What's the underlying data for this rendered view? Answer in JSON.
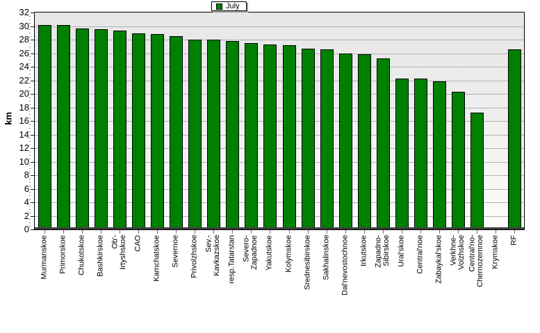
{
  "chart_data": {
    "type": "bar",
    "title": "",
    "legend": [
      "July"
    ],
    "legend_position": "top-center",
    "ylabel": "km",
    "xlabel": "",
    "ylim": [
      0,
      32
    ],
    "ytick_step": 2,
    "ytick_labels": [
      "0",
      "2",
      "4",
      "6",
      "8",
      "10",
      "12",
      "14",
      "16",
      "18",
      "20",
      "22",
      "24",
      "26",
      "28",
      "30",
      "32"
    ],
    "grid": true,
    "plot_bg_top_color": "#e6e6e6",
    "plot_bg_bottom_color": "#fcfcfc",
    "bar_color": "#008000",
    "bar_border_color": "#000000",
    "categories": [
      "Murmanskoe",
      "Primorskoe",
      "Chukotskoe",
      "Bashkirskoe",
      "Ob'-Irtyshskoe",
      "CAO",
      "Kamchatskoe",
      "Severnoe",
      "Privolzhskoe",
      "Sev.-Kavkazskoe",
      "resp.Tatarstan",
      "Severo-Zapadnoe",
      "Yakutskoe",
      "Kolymskoe",
      "Srednesibirskoe",
      "Sakhalinskoe",
      "Dal'nevostochnoe",
      "Irkutskoe",
      "Zapadno-Sibirskoe",
      "Ural'skoe",
      "Central'noe",
      "Zabaykal'skoe",
      "Verkhne-Volzhskoe",
      "Central'no-Chernozemnoe",
      "Krymskoe",
      "RF"
    ],
    "category_label_lines": [
      [
        "Murmanskoe"
      ],
      [
        "Primorskoe"
      ],
      [
        "Chukotskoe"
      ],
      [
        "Bashkirskoe"
      ],
      [
        "Ob'-",
        "Irtyshskoe"
      ],
      [
        "CAO"
      ],
      [
        "Kamchatskoe"
      ],
      [
        "Severnoe"
      ],
      [
        "Privolzhskoe"
      ],
      [
        "Sev.-",
        "Kavkazskoe"
      ],
      [
        "resp.Tatarstan"
      ],
      [
        "Severo-",
        "Zapadnoe"
      ],
      [
        "Yakutskoe"
      ],
      [
        "Kolymskoe"
      ],
      [
        "Srednesibirskoe"
      ],
      [
        "Sakhalinskoe"
      ],
      [
        "Dal'nevostochnoe"
      ],
      [
        "Irkutskoe"
      ],
      [
        "Zapadno-",
        "Sibirskoe"
      ],
      [
        "Ural'skoe"
      ],
      [
        "Central'noe"
      ],
      [
        "Zabaykal'skoe"
      ],
      [
        "Verkhne-",
        "Volzhskoe"
      ],
      [
        "Central'no-",
        "Chernozemnoe"
      ],
      [
        "Krymskoe"
      ],
      [
        "RF"
      ]
    ],
    "values": [
      30.2,
      30.2,
      29.6,
      29.5,
      29.3,
      28.9,
      28.8,
      28.5,
      28.0,
      28.0,
      27.8,
      27.5,
      27.3,
      27.2,
      26.7,
      26.6,
      26.0,
      25.8,
      25.2,
      22.3,
      22.3,
      21.8,
      20.3,
      17.2,
      null,
      26.6
    ]
  }
}
